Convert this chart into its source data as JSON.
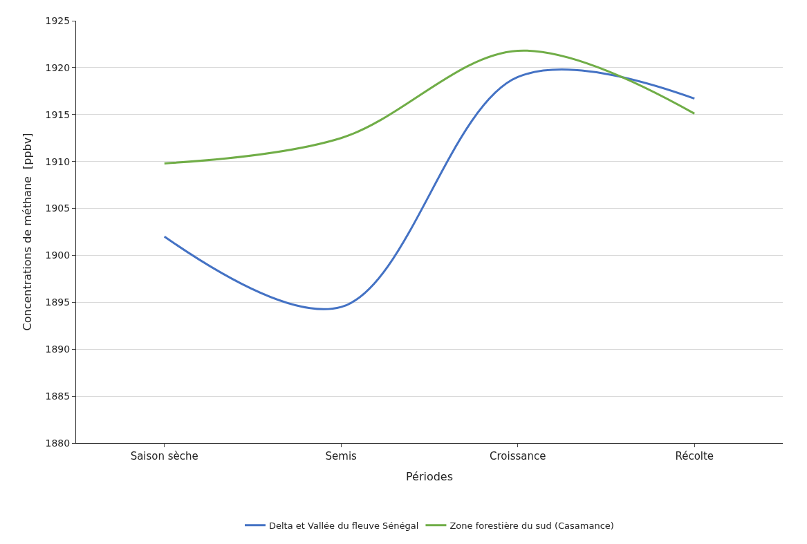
{
  "chart_data": {
    "type": "line",
    "xlabel": "Périodes",
    "ylabel": "Concentrations de méthane  [ppbv]",
    "categories": [
      "Saison sèche",
      "Semis",
      "Croissance",
      "Récolte"
    ],
    "series": [
      {
        "name": "Delta et Vallée du fleuve Sénégal",
        "color": "#4472c4",
        "values": [
          1902,
          1894.5,
          1919,
          1916.7
        ]
      },
      {
        "name": "Zone forestière du sud (Casamance)",
        "color": "#70ad47",
        "values": [
          1909.8,
          1912.5,
          1921.8,
          1915.1
        ]
      }
    ],
    "ylim": [
      1880,
      1925
    ],
    "yticks": [
      1880,
      1885,
      1890,
      1895,
      1900,
      1905,
      1910,
      1915,
      1920,
      1925
    ],
    "grid": "y",
    "legend": "bottom",
    "marker": "none",
    "line_style": "solid"
  }
}
